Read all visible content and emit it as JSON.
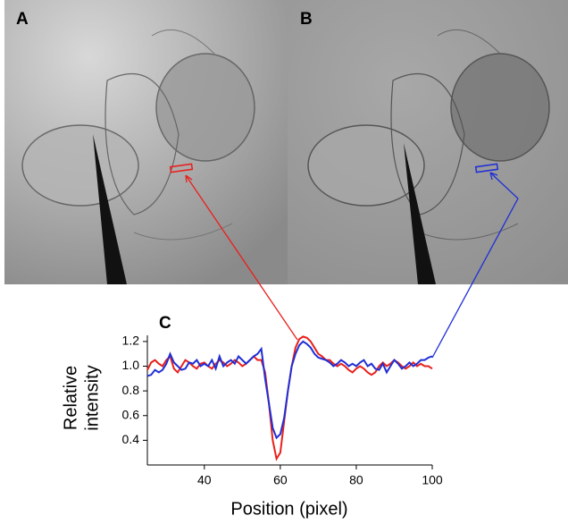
{
  "panel_labels": [
    "A",
    "B",
    "C"
  ],
  "chart_data": {
    "type": "line",
    "xlabel": "Position (pixel)",
    "ylabel": [
      "Relative",
      "intensity"
    ],
    "x": [
      25,
      26,
      27,
      28,
      29,
      30,
      31,
      32,
      33,
      34,
      35,
      36,
      37,
      38,
      39,
      40,
      41,
      42,
      43,
      44,
      45,
      46,
      47,
      48,
      49,
      50,
      51,
      52,
      53,
      54,
      55,
      56,
      57,
      58,
      59,
      60,
      61,
      62,
      63,
      64,
      65,
      66,
      67,
      68,
      69,
      70,
      71,
      72,
      73,
      74,
      75,
      76,
      77,
      78,
      79,
      80,
      81,
      82,
      83,
      84,
      85,
      86,
      87,
      88,
      89,
      90,
      91,
      92,
      93,
      94,
      95,
      96,
      97,
      98,
      99,
      100
    ],
    "series": [
      {
        "color": "#e8201c",
        "values": [
          0.97,
          1.03,
          1.05,
          1.02,
          1.0,
          1.05,
          1.08,
          0.98,
          0.95,
          1.0,
          1.05,
          1.03,
          1.0,
          0.98,
          1.02,
          1.03,
          1.0,
          0.98,
          1.02,
          1.05,
          1.03,
          1.0,
          1.02,
          1.05,
          1.03,
          1.0,
          1.02,
          1.05,
          1.08,
          1.05,
          1.05,
          0.95,
          0.7,
          0.4,
          0.25,
          0.3,
          0.55,
          0.8,
          1.0,
          1.15,
          1.22,
          1.24,
          1.23,
          1.2,
          1.15,
          1.1,
          1.08,
          1.05,
          1.05,
          1.02,
          1.0,
          1.02,
          1.0,
          0.97,
          0.95,
          0.98,
          1.0,
          0.98,
          0.95,
          0.93,
          0.95,
          1.0,
          1.03,
          1.0,
          1.02,
          1.05,
          1.03,
          1.0,
          0.98,
          1.0,
          1.03,
          1.0,
          1.02,
          1.0,
          1.0,
          0.98
        ]
      },
      {
        "color": "#1f2fd6",
        "values": [
          0.92,
          0.93,
          0.97,
          0.95,
          0.97,
          1.02,
          1.1,
          1.03,
          1.0,
          0.97,
          0.98,
          1.03,
          1.02,
          1.05,
          1.0,
          1.02,
          1.0,
          1.05,
          0.98,
          1.08,
          1.0,
          1.03,
          1.05,
          1.02,
          1.08,
          1.05,
          1.02,
          1.05,
          1.08,
          1.1,
          1.14,
          0.9,
          0.7,
          0.5,
          0.42,
          0.45,
          0.58,
          0.8,
          1.0,
          1.1,
          1.17,
          1.2,
          1.18,
          1.15,
          1.1,
          1.07,
          1.06,
          1.05,
          1.03,
          1.0,
          1.02,
          1.05,
          1.03,
          1.0,
          1.02,
          1.0,
          1.03,
          1.05,
          1.0,
          1.02,
          0.98,
          0.97,
          1.02,
          0.95,
          1.0,
          1.05,
          1.02,
          0.98,
          1.0,
          1.03,
          1.0,
          1.02,
          1.05,
          1.05,
          1.07,
          1.08
        ]
      }
    ],
    "xlim": [
      25,
      100
    ],
    "xticks": [
      40,
      60,
      80,
      100
    ],
    "ylim": [
      0.2,
      1.25
    ],
    "yticks": [
      0.4,
      0.6,
      0.8,
      {
        "value": 1,
        "label": "1.0"
      },
      1.2
    ]
  }
}
